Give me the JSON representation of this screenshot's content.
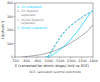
{
  "chart_data": {
    "type": "line",
    "xlabel": "E (corrected for ohmic drops) (mV vs SCE)",
    "ylabel": "i (mA/cm²)",
    "annotations": [
      "SCE: saturated calomel electrode"
    ],
    "xlim": [
      -700,
      -1400
    ],
    "ylim": [
      0,
      400
    ],
    "xticks": [
      -700,
      -800,
      -900,
      -1000,
      -1100,
      -1200,
      -1300,
      -1400
    ],
    "yticks": [
      0,
      100,
      200,
      300,
      400
    ],
    "grid": false,
    "series": [
      {
        "name": "1- Nickel deposit\n    separate",
        "color": "#888888",
        "line_style": "solid",
        "x": [
          -760,
          -780,
          -820,
          -870,
          -950,
          -1050,
          -1150,
          -1250,
          -1350,
          -1400
        ],
        "values": [
          0,
          2,
          5,
          10,
          20,
          45,
          80,
          130,
          190,
          240
        ]
      },
      {
        "name": "2- Zn deposit\n    separate",
        "color": "#888888",
        "line_style": "dashed",
        "x": [
          -990,
          -1000,
          -1010,
          -1025,
          -1045,
          -1075,
          -1110,
          -1160,
          -1230,
          -1310,
          -1400
        ],
        "values": [
          0,
          8,
          20,
          40,
          70,
          110,
          155,
          205,
          255,
          300,
          340
        ]
      },
      {
        "name": "3- Nickel codeposit",
        "color": "#00ccff",
        "line_style": "solid",
        "x": [
          -970,
          -980,
          -990,
          -1000,
          -1010,
          -1020,
          -1035,
          -1055,
          -1080,
          -1120,
          -1180,
          -1270,
          -1380
        ],
        "values": [
          0,
          1,
          2,
          3,
          5,
          9,
          15,
          25,
          40,
          65,
          110,
          200,
          330
        ]
      },
      {
        "name": "4- Zn codeposit",
        "color": "#00ccff",
        "line_style": "dashed",
        "x": [
          -990,
          -1000,
          -1015,
          -1030,
          -1050,
          -1080,
          -1120,
          -1170,
          -1240,
          -1320,
          -1400
        ],
        "values": [
          0,
          8,
          22,
          42,
          72,
          112,
          158,
          208,
          258,
          305,
          345
        ]
      }
    ]
  }
}
